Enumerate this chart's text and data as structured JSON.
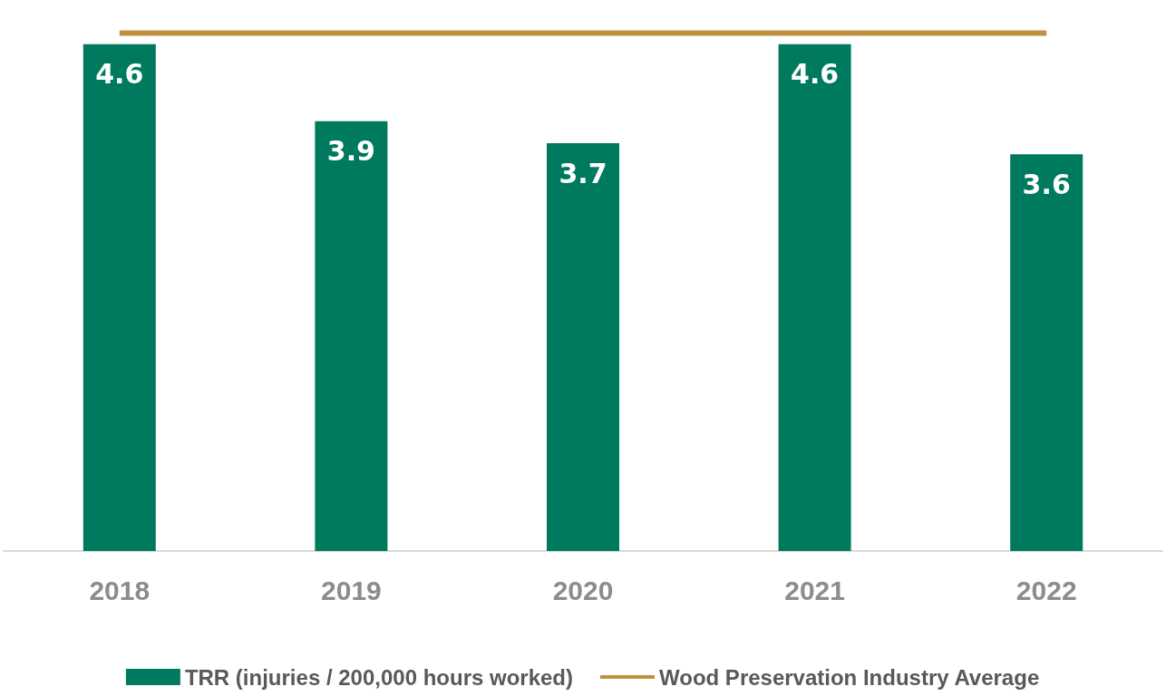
{
  "chart_data": {
    "type": "bar",
    "categories": [
      "2018",
      "2019",
      "2020",
      "2021",
      "2022"
    ],
    "series": [
      {
        "name": "TRR (injuries / 200,000 hours worked)",
        "color": "#007a5e",
        "values": [
          4.6,
          3.9,
          3.7,
          4.6,
          3.6
        ],
        "value_labels": [
          "4.6",
          "3.9",
          "3.7",
          "4.6",
          "3.6"
        ]
      },
      {
        "name": "Wood Preservation Industry Average",
        "type": "line",
        "color": "#c0913f",
        "values": [
          4.7,
          4.7,
          4.7,
          4.7,
          4.7
        ]
      }
    ],
    "legend": "bottom",
    "marker": "none"
  }
}
